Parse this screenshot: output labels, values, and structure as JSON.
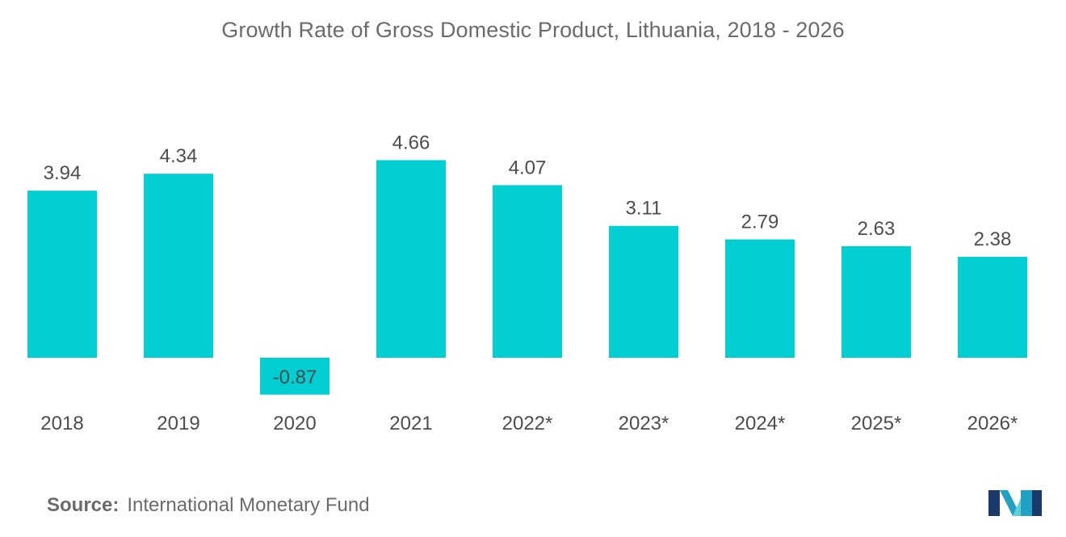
{
  "title": "Growth Rate of Gross Domestic Product, Lithuania, 2018 - 2026",
  "source": {
    "label": "Source:",
    "text": "International Monetary Fund"
  },
  "logo": {
    "icon": "mordor-intelligence-logo-icon",
    "colors": [
      "#1b3a6b",
      "#21a1c4",
      "#5ed0d8"
    ]
  },
  "colors": {
    "bar": "#00CED1",
    "text": "#4d4d4d",
    "title": "#6b6b6b"
  },
  "chart_data": {
    "type": "bar",
    "title": "Growth Rate of Gross Domestic Product, Lithuania, 2018 - 2026",
    "xlabel": "",
    "ylabel": "",
    "categories": [
      "2018",
      "2019",
      "2020",
      "2021",
      "2022*",
      "2023*",
      "2024*",
      "2025*",
      "2026*"
    ],
    "values": [
      3.94,
      4.34,
      -0.87,
      4.66,
      4.07,
      3.11,
      2.79,
      2.63,
      2.38
    ],
    "data_labels": [
      "3.94",
      "4.34",
      "-0.87",
      "4.66",
      "4.07",
      "3.11",
      "2.79",
      "2.63",
      "2.38"
    ],
    "grid": false,
    "legend": "none"
  }
}
